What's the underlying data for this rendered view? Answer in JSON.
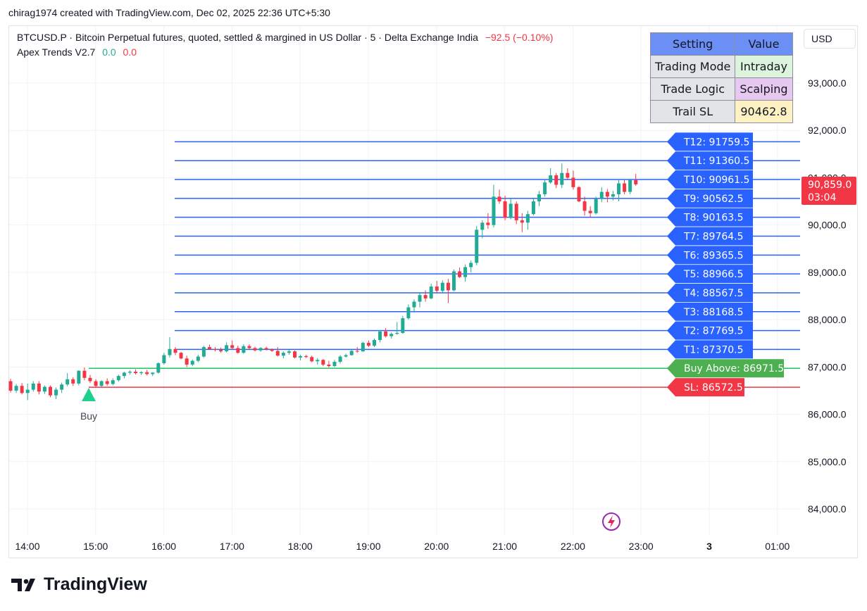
{
  "header": {
    "text": "chirag1974 created with TradingView.com, Dec 02, 2025 22:36 UTC+5:30"
  },
  "legend": {
    "symbol_text": "BTCUSD.P · Bitcoin Perpetual futures, quoted, settled & margined in US Dollar · 5 · Delta Exchange India",
    "change": "−92.5 (−0.10%)",
    "indicator": "Apex Trends V2.7",
    "ind_val1": "0.0",
    "ind_val2": "0.0"
  },
  "currency": "USD",
  "settings_table": {
    "header": [
      "Setting",
      "Value"
    ],
    "rows": [
      {
        "label": "Trading Mode",
        "value": "Intraday",
        "color": "#dcf3dc"
      },
      {
        "label": "Trade Logic",
        "value": "Scalping",
        "color": "#e6c8f0"
      },
      {
        "label": "Trail SL",
        "value": "90462.8",
        "color": "#fff2c2"
      }
    ],
    "header_color": "#6b8ff5"
  },
  "price_badge": {
    "price": "90,859.0",
    "timer": "03:04",
    "color": "#f23645"
  },
  "buy_marker": {
    "label": "Buy",
    "time": "14:55"
  },
  "brand": "TradingView",
  "colors": {
    "up": "#22ab94",
    "down": "#f23645",
    "target_line": "#2962ff",
    "target_label_bg": "#2962ff",
    "buy_line": "#22c55e",
    "buy_label_bg": "#4caf50",
    "sl": "#f23645"
  },
  "chart_data": {
    "type": "candlestick",
    "y_range": [
      83500,
      93800
    ],
    "y_ticks": [
      "84,000.0",
      "85,000.0",
      "86,000.0",
      "87,000.0",
      "88,000.0",
      "89,000.0",
      "90,000.0",
      "91,000.0",
      "92,000.0",
      "93,000.0"
    ],
    "x_ticks": [
      "14:00",
      "15:00",
      "16:00",
      "17:00",
      "18:00",
      "19:00",
      "20:00",
      "21:00",
      "22:00",
      "23:00",
      "3",
      "01:00"
    ],
    "levels": [
      {
        "label": "T12: 91759.5",
        "value": 91759.5,
        "kind": "target"
      },
      {
        "label": "T11: 91360.5",
        "value": 91360.5,
        "kind": "target"
      },
      {
        "label": "T10: 90961.5",
        "value": 90961.5,
        "kind": "target"
      },
      {
        "label": "T9: 90562.5",
        "value": 90562.5,
        "kind": "target"
      },
      {
        "label": "T8: 90163.5",
        "value": 90163.5,
        "kind": "target"
      },
      {
        "label": "T7: 89764.5",
        "value": 89764.5,
        "kind": "target"
      },
      {
        "label": "T6: 89365.5",
        "value": 89365.5,
        "kind": "target"
      },
      {
        "label": "T5: 88966.5",
        "value": 88966.5,
        "kind": "target"
      },
      {
        "label": "T4: 88567.5",
        "value": 88567.5,
        "kind": "target"
      },
      {
        "label": "T3: 88168.5",
        "value": 88168.5,
        "kind": "target"
      },
      {
        "label": "T2: 87769.5",
        "value": 87769.5,
        "kind": "target"
      },
      {
        "label": "T1: 87370.5",
        "value": 87370.5,
        "kind": "target"
      },
      {
        "label": "Buy Above: 86971.5",
        "value": 86971.5,
        "kind": "buy"
      },
      {
        "label": "SL: 86572.5",
        "value": 86572.5,
        "kind": "sl"
      }
    ],
    "candles": [
      {
        "o": 86700,
        "h": 86750,
        "l": 86460,
        "c": 86500
      },
      {
        "o": 86500,
        "h": 86640,
        "l": 86450,
        "c": 86600
      },
      {
        "o": 86600,
        "h": 86660,
        "l": 86420,
        "c": 86450
      },
      {
        "o": 86450,
        "h": 86650,
        "l": 86300,
        "c": 86520
      },
      {
        "o": 86520,
        "h": 86700,
        "l": 86480,
        "c": 86650
      },
      {
        "o": 86650,
        "h": 86700,
        "l": 86420,
        "c": 86480
      },
      {
        "o": 86480,
        "h": 86610,
        "l": 86430,
        "c": 86580
      },
      {
        "o": 86580,
        "h": 86610,
        "l": 86360,
        "c": 86400
      },
      {
        "o": 86400,
        "h": 86570,
        "l": 86320,
        "c": 86520
      },
      {
        "o": 86520,
        "h": 86670,
        "l": 86450,
        "c": 86630
      },
      {
        "o": 86630,
        "h": 86870,
        "l": 86590,
        "c": 86740
      },
      {
        "o": 86740,
        "h": 86780,
        "l": 86600,
        "c": 86650
      },
      {
        "o": 86650,
        "h": 86930,
        "l": 86610,
        "c": 86920
      },
      {
        "o": 86920,
        "h": 86990,
        "l": 86720,
        "c": 86770
      },
      {
        "o": 86770,
        "h": 86830,
        "l": 86660,
        "c": 86700
      },
      {
        "o": 86700,
        "h": 86740,
        "l": 86560,
        "c": 86600
      },
      {
        "o": 86600,
        "h": 86720,
        "l": 86580,
        "c": 86700
      },
      {
        "o": 86700,
        "h": 86760,
        "l": 86600,
        "c": 86640
      },
      {
        "o": 86640,
        "h": 86760,
        "l": 86610,
        "c": 86720
      },
      {
        "o": 86720,
        "h": 86840,
        "l": 86690,
        "c": 86810
      },
      {
        "o": 86810,
        "h": 86900,
        "l": 86760,
        "c": 86880
      },
      {
        "o": 86880,
        "h": 86930,
        "l": 86840,
        "c": 86900
      },
      {
        "o": 86900,
        "h": 86950,
        "l": 86840,
        "c": 86870
      },
      {
        "o": 86870,
        "h": 86910,
        "l": 86830,
        "c": 86890
      },
      {
        "o": 86890,
        "h": 86940,
        "l": 86820,
        "c": 86850
      },
      {
        "o": 86850,
        "h": 86890,
        "l": 86810,
        "c": 86880
      },
      {
        "o": 86880,
        "h": 87100,
        "l": 86860,
        "c": 87080
      },
      {
        "o": 87080,
        "h": 87300,
        "l": 87050,
        "c": 87250
      },
      {
        "o": 87250,
        "h": 87630,
        "l": 87200,
        "c": 87380
      },
      {
        "o": 87380,
        "h": 87420,
        "l": 87250,
        "c": 87300
      },
      {
        "o": 87300,
        "h": 87320,
        "l": 87160,
        "c": 87180
      },
      {
        "o": 87180,
        "h": 87240,
        "l": 87000,
        "c": 87050
      },
      {
        "o": 87050,
        "h": 87160,
        "l": 87020,
        "c": 87130
      },
      {
        "o": 87130,
        "h": 87260,
        "l": 87100,
        "c": 87220
      },
      {
        "o": 87220,
        "h": 87450,
        "l": 87200,
        "c": 87420
      },
      {
        "o": 87420,
        "h": 87470,
        "l": 87360,
        "c": 87380
      },
      {
        "o": 87380,
        "h": 87420,
        "l": 87330,
        "c": 87360
      },
      {
        "o": 87360,
        "h": 87410,
        "l": 87300,
        "c": 87330
      },
      {
        "o": 87330,
        "h": 87520,
        "l": 87310,
        "c": 87460
      },
      {
        "o": 87460,
        "h": 87560,
        "l": 87380,
        "c": 87400
      },
      {
        "o": 87400,
        "h": 87450,
        "l": 87280,
        "c": 87300
      },
      {
        "o": 87300,
        "h": 87480,
        "l": 87280,
        "c": 87440
      },
      {
        "o": 87440,
        "h": 87480,
        "l": 87380,
        "c": 87400
      },
      {
        "o": 87400,
        "h": 87430,
        "l": 87330,
        "c": 87350
      },
      {
        "o": 87350,
        "h": 87420,
        "l": 87320,
        "c": 87400
      },
      {
        "o": 87400,
        "h": 87430,
        "l": 87350,
        "c": 87370
      },
      {
        "o": 87370,
        "h": 87390,
        "l": 87320,
        "c": 87340
      },
      {
        "o": 87340,
        "h": 87420,
        "l": 87220,
        "c": 87240
      },
      {
        "o": 87240,
        "h": 87330,
        "l": 87180,
        "c": 87300
      },
      {
        "o": 87300,
        "h": 87360,
        "l": 87260,
        "c": 87330
      },
      {
        "o": 87330,
        "h": 87350,
        "l": 87180,
        "c": 87200
      },
      {
        "o": 87200,
        "h": 87260,
        "l": 87140,
        "c": 87230
      },
      {
        "o": 87230,
        "h": 87260,
        "l": 87190,
        "c": 87210
      },
      {
        "o": 87210,
        "h": 87240,
        "l": 87100,
        "c": 87120
      },
      {
        "o": 87120,
        "h": 87190,
        "l": 87050,
        "c": 87150
      },
      {
        "o": 87150,
        "h": 87170,
        "l": 87020,
        "c": 87050
      },
      {
        "o": 87050,
        "h": 87130,
        "l": 86990,
        "c": 87020
      },
      {
        "o": 87020,
        "h": 87150,
        "l": 87000,
        "c": 87110
      },
      {
        "o": 87110,
        "h": 87250,
        "l": 87070,
        "c": 87220
      },
      {
        "o": 87220,
        "h": 87280,
        "l": 87200,
        "c": 87250
      },
      {
        "o": 87250,
        "h": 87360,
        "l": 87240,
        "c": 87340
      },
      {
        "o": 87340,
        "h": 87420,
        "l": 87300,
        "c": 87330
      },
      {
        "o": 87330,
        "h": 87530,
        "l": 87320,
        "c": 87510
      },
      {
        "o": 87510,
        "h": 87560,
        "l": 87420,
        "c": 87450
      },
      {
        "o": 87450,
        "h": 87600,
        "l": 87420,
        "c": 87570
      },
      {
        "o": 87570,
        "h": 87780,
        "l": 87520,
        "c": 87750
      },
      {
        "o": 87750,
        "h": 87820,
        "l": 87620,
        "c": 87650
      },
      {
        "o": 87650,
        "h": 87730,
        "l": 87600,
        "c": 87700
      },
      {
        "o": 87700,
        "h": 87950,
        "l": 87680,
        "c": 87720
      },
      {
        "o": 87720,
        "h": 88080,
        "l": 87700,
        "c": 88030
      },
      {
        "o": 88030,
        "h": 88320,
        "l": 88000,
        "c": 88260
      },
      {
        "o": 88260,
        "h": 88430,
        "l": 88150,
        "c": 88380
      },
      {
        "o": 88380,
        "h": 88560,
        "l": 88260,
        "c": 88520
      },
      {
        "o": 88520,
        "h": 88620,
        "l": 88380,
        "c": 88450
      },
      {
        "o": 88450,
        "h": 88760,
        "l": 88430,
        "c": 88700
      },
      {
        "o": 88700,
        "h": 88820,
        "l": 88570,
        "c": 88610
      },
      {
        "o": 88610,
        "h": 88830,
        "l": 88560,
        "c": 88780
      },
      {
        "o": 88780,
        "h": 88860,
        "l": 88350,
        "c": 88620
      },
      {
        "o": 88620,
        "h": 89060,
        "l": 88600,
        "c": 89020
      },
      {
        "o": 89020,
        "h": 89100,
        "l": 88880,
        "c": 88900
      },
      {
        "o": 88900,
        "h": 89170,
        "l": 88800,
        "c": 89110
      },
      {
        "o": 89110,
        "h": 89250,
        "l": 89000,
        "c": 89200
      },
      {
        "o": 89200,
        "h": 89980,
        "l": 89150,
        "c": 89900
      },
      {
        "o": 89900,
        "h": 90100,
        "l": 89720,
        "c": 90050
      },
      {
        "o": 90050,
        "h": 90250,
        "l": 89920,
        "c": 90000
      },
      {
        "o": 90000,
        "h": 90850,
        "l": 89950,
        "c": 90600
      },
      {
        "o": 90600,
        "h": 90750,
        "l": 90450,
        "c": 90500
      },
      {
        "o": 90500,
        "h": 90620,
        "l": 90100,
        "c": 90150
      },
      {
        "o": 90150,
        "h": 90560,
        "l": 90120,
        "c": 90450
      },
      {
        "o": 90450,
        "h": 90500,
        "l": 90020,
        "c": 90100
      },
      {
        "o": 90100,
        "h": 90250,
        "l": 89850,
        "c": 90050
      },
      {
        "o": 90050,
        "h": 90300,
        "l": 89900,
        "c": 90230
      },
      {
        "o": 90230,
        "h": 90550,
        "l": 90200,
        "c": 90500
      },
      {
        "o": 90500,
        "h": 90720,
        "l": 90400,
        "c": 90650
      },
      {
        "o": 90650,
        "h": 90950,
        "l": 90600,
        "c": 90900
      },
      {
        "o": 90900,
        "h": 91200,
        "l": 90870,
        "c": 91050
      },
      {
        "o": 91050,
        "h": 91100,
        "l": 90780,
        "c": 90850
      },
      {
        "o": 90850,
        "h": 91300,
        "l": 90780,
        "c": 91100
      },
      {
        "o": 91100,
        "h": 91200,
        "l": 90950,
        "c": 91000
      },
      {
        "o": 91000,
        "h": 91150,
        "l": 90750,
        "c": 90800
      },
      {
        "o": 90800,
        "h": 90820,
        "l": 90480,
        "c": 90500
      },
      {
        "o": 90500,
        "h": 90600,
        "l": 90200,
        "c": 90300
      },
      {
        "o": 90300,
        "h": 90400,
        "l": 90150,
        "c": 90250
      },
      {
        "o": 90250,
        "h": 90600,
        "l": 90220,
        "c": 90550
      },
      {
        "o": 90550,
        "h": 90800,
        "l": 90480,
        "c": 90700
      },
      {
        "o": 90700,
        "h": 90760,
        "l": 90480,
        "c": 90600
      },
      {
        "o": 90600,
        "h": 90720,
        "l": 90520,
        "c": 90650
      },
      {
        "o": 90650,
        "h": 90960,
        "l": 90500,
        "c": 90880
      },
      {
        "o": 90880,
        "h": 90950,
        "l": 90650,
        "c": 90700
      },
      {
        "o": 90700,
        "h": 90980,
        "l": 90650,
        "c": 90950
      },
      {
        "o": 90950,
        "h": 91080,
        "l": 90830,
        "c": 90859
      }
    ]
  }
}
